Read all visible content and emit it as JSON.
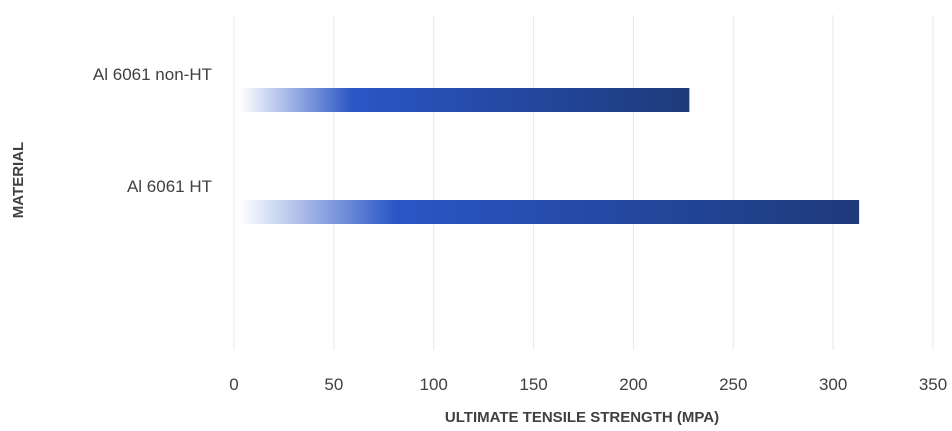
{
  "chart_data": {
    "type": "bar",
    "orientation": "horizontal",
    "categories": [
      "Al 6061 non-HT",
      "Al 6061 HT"
    ],
    "values": [
      225,
      310
    ],
    "xlabel": "ULTIMATE TENSILE STRENGTH (MPA)",
    "ylabel": "MATERIAL",
    "xlim": [
      0,
      350
    ],
    "xticks": [
      "0",
      "50",
      "100",
      "150",
      "200",
      "250",
      "300",
      "350"
    ],
    "grid": "vertical",
    "bar_gradient": [
      "#ffffff",
      "#2a56c6",
      "#1e3a7a"
    ]
  }
}
